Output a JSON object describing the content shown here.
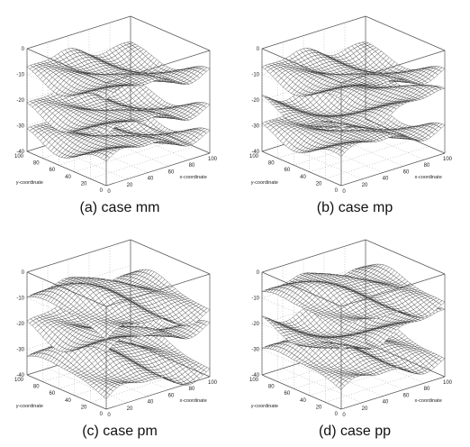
{
  "chart_data": [
    {
      "type": "surface",
      "caption": "(a) case mm",
      "xlabel": "x-coordinate",
      "ylabel": "y-coordinate",
      "zlabel": "",
      "x_ticks": [
        "0",
        "20",
        "40",
        "60",
        "80",
        "100"
      ],
      "y_ticks": [
        "0",
        "20",
        "40",
        "60",
        "80",
        "100"
      ],
      "z_ticks": [
        "0",
        "-10",
        "-20",
        "-30",
        "-40"
      ],
      "xlim": [
        0,
        100
      ],
      "ylim": [
        0,
        100
      ],
      "zlim": [
        -40,
        0
      ],
      "grid": true,
      "series": [
        {
          "levels": [
            -9,
            -23,
            -33
          ],
          "wave_x": [
            1,
            1,
            1
          ],
          "wave_y": [
            1,
            1,
            1
          ],
          "amplitude": 4
        }
      ]
    },
    {
      "type": "surface",
      "caption": "(b) case mp",
      "xlabel": "x-coordinate",
      "ylabel": "y-coordinate",
      "zlabel": "",
      "x_ticks": [
        "0",
        "20",
        "40",
        "60",
        "80",
        "100"
      ],
      "y_ticks": [
        "0",
        "20",
        "40",
        "60",
        "80",
        "100"
      ],
      "z_ticks": [
        "0",
        "-10",
        "-20",
        "-30",
        "-40"
      ],
      "xlim": [
        0,
        100
      ],
      "ylim": [
        0,
        100
      ],
      "zlim": [
        -40,
        0
      ],
      "grid": true,
      "series": [
        {
          "levels": [
            -9,
            -20,
            -31
          ],
          "wave_x": [
            1,
            -1,
            1
          ],
          "wave_y": [
            1,
            1,
            1
          ],
          "amplitude": 4
        }
      ]
    },
    {
      "type": "surface",
      "caption": "(c) case pm",
      "xlabel": "x-coordinate",
      "ylabel": "y-coordinate",
      "zlabel": "",
      "x_ticks": [
        "0",
        "20",
        "40",
        "60",
        "80",
        "100"
      ],
      "y_ticks": [
        "0",
        "20",
        "40",
        "60",
        "80",
        "100"
      ],
      "z_ticks": [
        "0",
        "-10",
        "-20",
        "-30",
        "-40"
      ],
      "xlim": [
        0,
        100
      ],
      "ylim": [
        0,
        100
      ],
      "zlim": [
        -40,
        0
      ],
      "grid": true,
      "series": [
        {
          "levels": [
            -10,
            -21,
            -33
          ],
          "wave_x": [
            1,
            1,
            1
          ],
          "wave_y": [
            -1,
            1,
            -1
          ],
          "amplitude": 5
        }
      ]
    },
    {
      "type": "surface",
      "caption": "(d) case pp",
      "xlabel": "x-coordinate",
      "ylabel": "y-coordinate",
      "zlabel": "",
      "x_ticks": [
        "0",
        "20",
        "40",
        "60",
        "80",
        "100"
      ],
      "y_ticks": [
        "0",
        "20",
        "40",
        "60",
        "80",
        "100"
      ],
      "z_ticks": [
        "0",
        "-10",
        "-20",
        "-30",
        "-40"
      ],
      "xlim": [
        0,
        100
      ],
      "ylim": [
        0,
        100
      ],
      "zlim": [
        -40,
        0
      ],
      "grid": true,
      "series": [
        {
          "levels": [
            -8,
            -19,
            -30
          ],
          "wave_x": [
            1,
            -1,
            1
          ],
          "wave_y": [
            -1,
            1,
            -1
          ],
          "amplitude": 4
        }
      ]
    }
  ]
}
